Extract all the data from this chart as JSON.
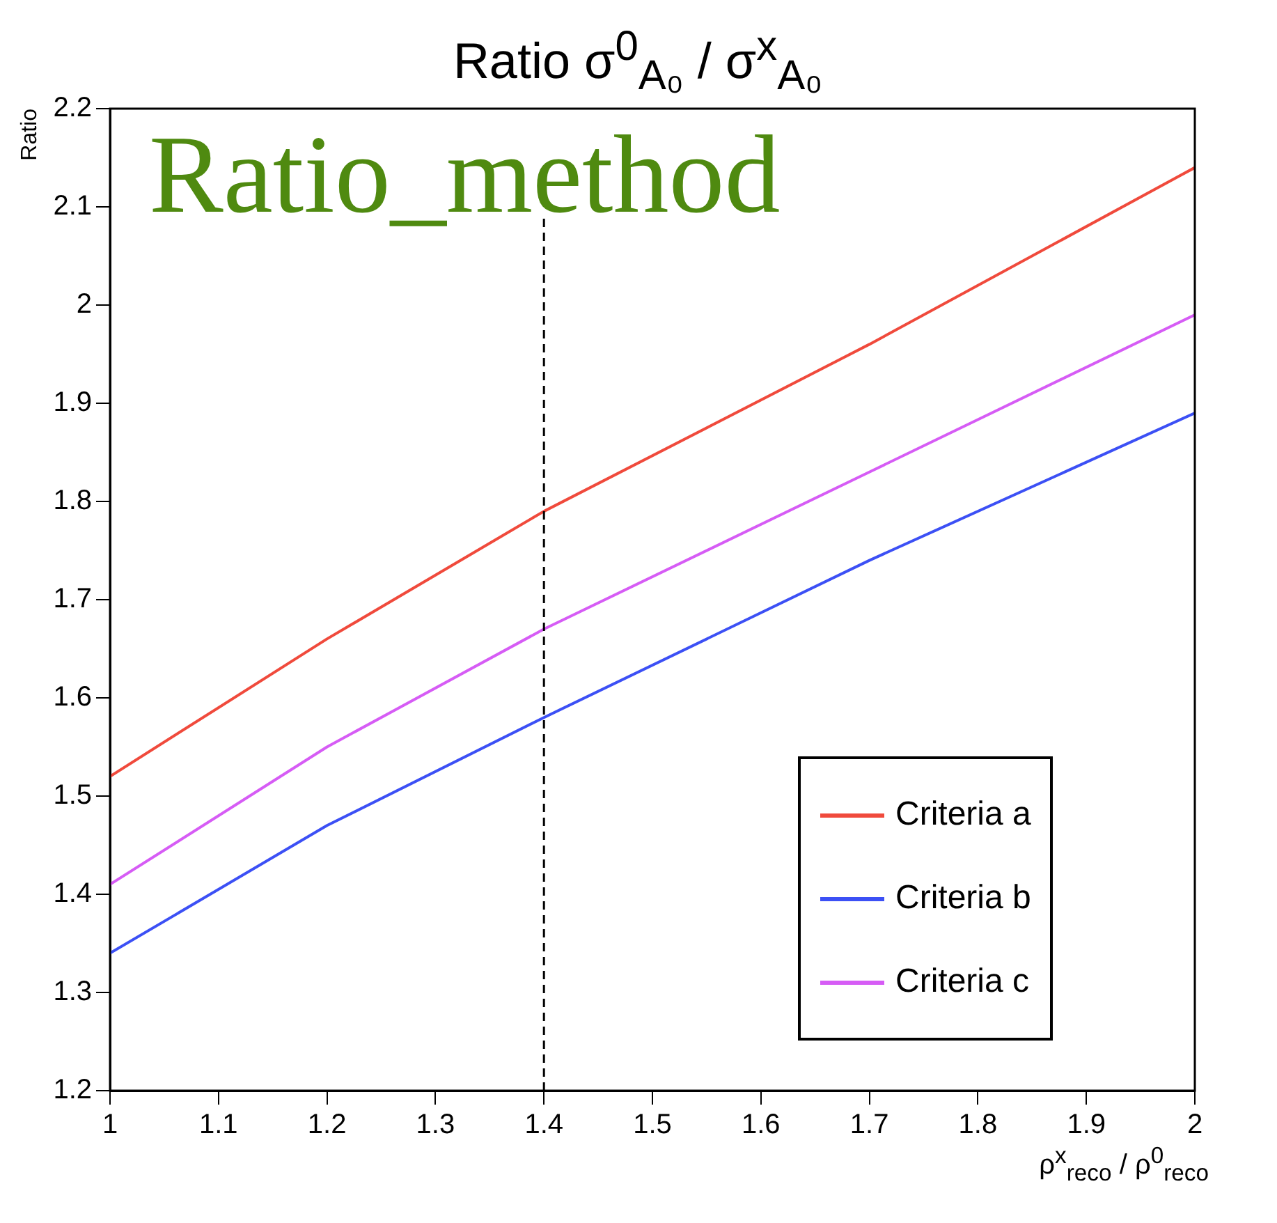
{
  "chart_data": {
    "type": "line",
    "title": "Ratio σ$^{0}$$_{A₀}$ / σ$^{x}$$_{A₀}$",
    "xlabel": "ρ$^{x}$$_{reco}$ / ρ$^{0}$$_{reco}$",
    "ylabel": "Ratio",
    "annotations": [
      "Ratio_method"
    ],
    "x": [
      1,
      1.2,
      1.4,
      1.7,
      2
    ],
    "series": [
      {
        "name": "Criteria a",
        "color": "#f04a3c",
        "values": [
          1.52,
          1.66,
          1.79,
          1.96,
          2.14
        ]
      },
      {
        "name": "Criteria b",
        "color": "#3c50f5",
        "values": [
          1.34,
          1.47,
          1.58,
          1.74,
          1.89
        ]
      },
      {
        "name": "Criteria c",
        "color": "#d65cf5",
        "values": [
          1.41,
          1.55,
          1.67,
          1.83,
          1.99
        ]
      }
    ],
    "xlim": [
      1,
      2
    ],
    "xticks": [
      1,
      1.1,
      1.2,
      1.3,
      1.4,
      1.5,
      1.6,
      1.7,
      1.8,
      1.9,
      2
    ],
    "ylim": [
      1.2,
      2.2
    ],
    "yticks": [
      1.2,
      1.3,
      1.4,
      1.5,
      1.6,
      1.7,
      1.8,
      1.9,
      2,
      2.1,
      2.2
    ],
    "ref_lines": [
      {
        "axis": "x",
        "value": 1.4,
        "color": "#000000",
        "line_style": "dashed"
      }
    ],
    "legend": "bottom right",
    "marker": "none",
    "line_style": "solid"
  }
}
